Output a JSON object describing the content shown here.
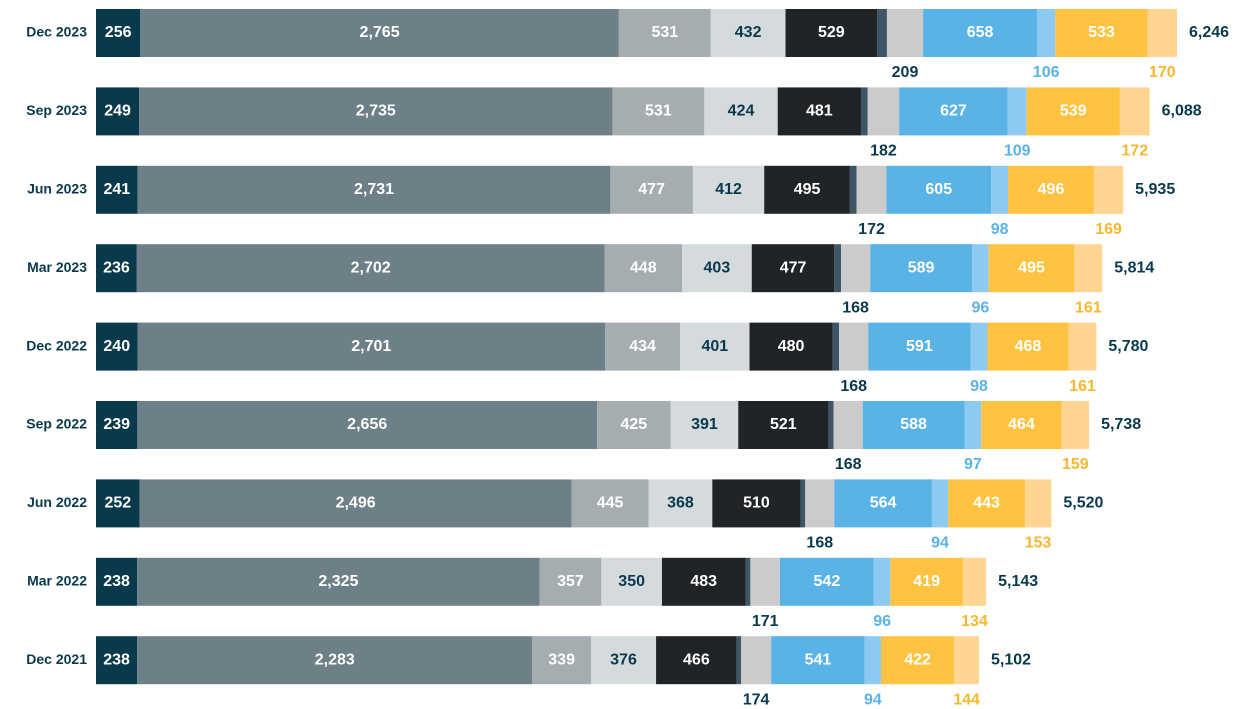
{
  "chart_data": {
    "type": "bar",
    "orientation": "horizontal",
    "stacked": true,
    "categories": [
      "Dec 2023",
      "Sep 2023",
      "Jun 2023",
      "Mar 2023",
      "Dec 2022",
      "Sep 2022",
      "Jun 2022",
      "Mar 2022",
      "Dec 2021"
    ],
    "series": [
      {
        "color": "#093a4c",
        "labels": "inside",
        "label_color": "#ffffff",
        "values": [
          256,
          249,
          241,
          236,
          240,
          239,
          252,
          238,
          238
        ]
      },
      {
        "color": "#6e8087",
        "labels": "inside",
        "label_color": "#ffffff",
        "values": [
          2765,
          2735,
          2731,
          2702,
          2701,
          2656,
          2496,
          2325,
          2283
        ],
        "value_labels": [
          "2,765",
          "2,735",
          "2,731",
          "2,702",
          "2,701",
          "2,656",
          "2,496",
          "2,325",
          "2,283"
        ]
      },
      {
        "color": "#a5adb0",
        "labels": "inside",
        "label_color": "#ffffff",
        "values": [
          531,
          531,
          477,
          448,
          434,
          425,
          445,
          357,
          339
        ]
      },
      {
        "color": "#d5dadd",
        "labels": "inside",
        "label_color": "#093a4c",
        "values": [
          432,
          424,
          412,
          403,
          401,
          391,
          368,
          350,
          376
        ]
      },
      {
        "color": "#212426",
        "labels": "inside",
        "label_color": "#ffffff",
        "values": [
          529,
          481,
          495,
          477,
          480,
          521,
          510,
          483,
          466
        ]
      },
      {
        "color": "#3e5566",
        "labels": "none",
        "values": [
          57,
          39,
          39,
          39,
          38,
          30,
          27,
          28,
          25
        ]
      },
      {
        "color": "#cbcbcb",
        "labels": "below",
        "label_color": "#093a4c",
        "values": [
          209,
          182,
          172,
          168,
          168,
          168,
          168,
          171,
          174
        ]
      },
      {
        "color": "#59b3e6",
        "labels": "inside",
        "label_color": "#ffffff",
        "values": [
          658,
          627,
          605,
          589,
          591,
          588,
          564,
          542,
          541
        ]
      },
      {
        "color": "#8ecaf0",
        "labels": "below",
        "label_color": "#59b3e6",
        "values": [
          106,
          109,
          98,
          96,
          98,
          97,
          94,
          96,
          94
        ]
      },
      {
        "color": "#ffc241",
        "labels": "inside",
        "label_color": "#ffffff",
        "values": [
          533,
          539,
          496,
          495,
          468,
          464,
          443,
          419,
          422
        ]
      },
      {
        "color": "#ffd591",
        "labels": "below",
        "label_color": "#f5b82e",
        "values": [
          170,
          172,
          169,
          161,
          161,
          159,
          153,
          134,
          144
        ]
      }
    ],
    "totals": [
      6246,
      6088,
      5935,
      5814,
      5780,
      5738,
      5520,
      5143,
      5102
    ],
    "total_labels": [
      "6,246",
      "6,088",
      "5,935",
      "5,814",
      "5,780",
      "5,738",
      "5,520",
      "5,143",
      "5,102"
    ]
  }
}
